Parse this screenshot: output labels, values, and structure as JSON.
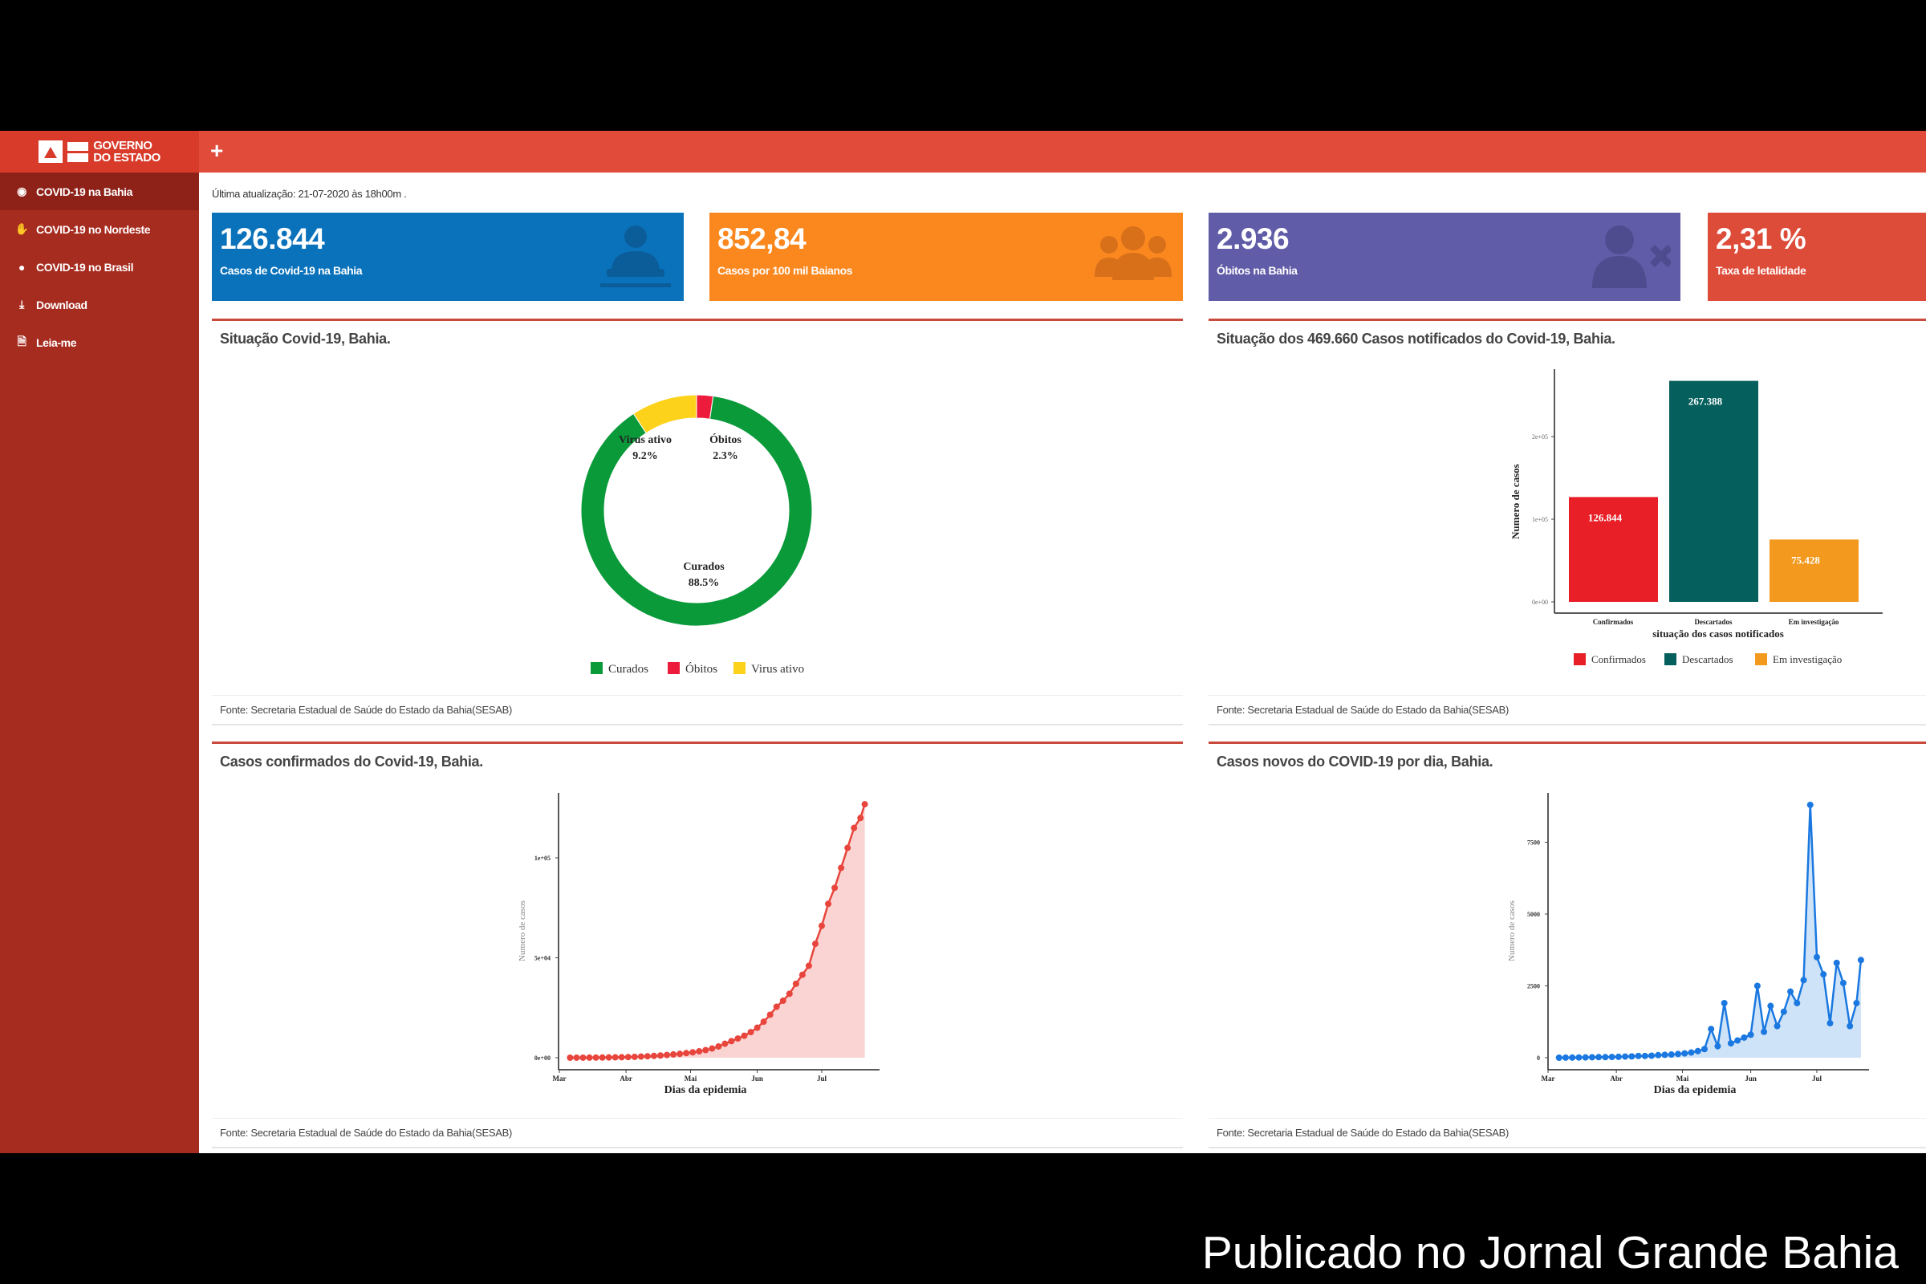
{
  "header": {
    "logo_text": "GOVERNO DO ESTADO",
    "logo_line1": "GOVERNO",
    "logo_line2": "DO ESTADO",
    "add_label": "+"
  },
  "sidebar": {
    "items": [
      {
        "label": "COVID-19 na Bahia",
        "icon": "binoculars-icon",
        "active": true
      },
      {
        "label": "COVID-19 no Nordeste",
        "icon": "hand-icon"
      },
      {
        "label": "COVID-19 no Brasil",
        "icon": "globe-icon"
      },
      {
        "label": "Download",
        "icon": "download-icon"
      },
      {
        "label": "Leia-me",
        "icon": "file-icon"
      }
    ]
  },
  "main": {
    "last_update": "Última atualização: 21-07-2020 às 18h00m .",
    "cards": [
      {
        "value": "126.844",
        "label": "Casos de Covid-19 na Bahia",
        "color": "#0a72bb",
        "icon": "doctor-icon"
      },
      {
        "value": "852,84",
        "label": "Casos por 100 mil Baianos",
        "color": "#fb881f",
        "icon": "users-icon"
      },
      {
        "value": "2.936",
        "label": "Óbitos na Bahia",
        "color": "#605ca8",
        "icon": "user-times-icon"
      },
      {
        "value": "2,31 %",
        "label": "Taxa de letalidade",
        "color": "#dd4b39",
        "icon": ""
      }
    ],
    "source": "Fonte: Secretaria Estadual de Saúde do Estado da Bahia(SESAB)"
  },
  "chart_data": [
    {
      "type": "pie",
      "title": "Situação Covid-19, Bahia.",
      "donut": true,
      "slices": [
        {
          "name": "Curados",
          "value": 88.5,
          "label": "88.5%",
          "color": "#0a9a3a"
        },
        {
          "name": "Óbitos",
          "value": 2.3,
          "label": "2.3%",
          "color": "#ee1c3c"
        },
        {
          "name": "Virus ativo",
          "value": 9.2,
          "label": "9.2%",
          "color": "#fcd21b"
        }
      ],
      "legend": "bottom"
    },
    {
      "type": "bar",
      "title": "Situação dos 469.660 Casos notificados do Covid-19, Bahia.",
      "categories": [
        "Confirmados",
        "Descartados",
        "Em investigação"
      ],
      "values": [
        126844,
        267388,
        75428
      ],
      "data_labels": [
        "126.844",
        "267.388",
        "75.428"
      ],
      "colors": [
        "#e81f27",
        "#05605d",
        "#f3991e"
      ],
      "xlabel": "situação dos casos notificados",
      "ylabel": "Numero de casos",
      "yticks": [
        {
          "v": 0,
          "label": "0e+00"
        },
        {
          "v": 100000,
          "label": "1e+05"
        },
        {
          "v": 200000,
          "label": "2e+05"
        }
      ],
      "ylim": [
        0,
        280000
      ],
      "legend": "bottom"
    },
    {
      "type": "area",
      "title": "Casos confirmados do Covid-19, Bahia.",
      "xlabel": "Dias da epidemia",
      "ylabel": "Numero de casos",
      "color": "#e8453c",
      "fill": "#f9d4d2",
      "xticks": [
        {
          "date": "2020-03-01",
          "label": "Mar"
        },
        {
          "date": "2020-04-01",
          "label": "Abr"
        },
        {
          "date": "2020-05-01",
          "label": "Mai"
        },
        {
          "date": "2020-06-01",
          "label": "Jun"
        },
        {
          "date": "2020-07-01",
          "label": "Jul"
        }
      ],
      "yticks": [
        {
          "v": 0,
          "label": "0e+00"
        },
        {
          "v": 50000,
          "label": "5e+04"
        },
        {
          "v": 100000,
          "label": "1e+05"
        }
      ],
      "x": [
        "2020-03-06",
        "2020-03-09",
        "2020-03-12",
        "2020-03-15",
        "2020-03-18",
        "2020-03-21",
        "2020-03-24",
        "2020-03-27",
        "2020-03-30",
        "2020-04-02",
        "2020-04-05",
        "2020-04-08",
        "2020-04-11",
        "2020-04-14",
        "2020-04-17",
        "2020-04-20",
        "2020-04-23",
        "2020-04-26",
        "2020-04-29",
        "2020-05-02",
        "2020-05-05",
        "2020-05-08",
        "2020-05-11",
        "2020-05-14",
        "2020-05-17",
        "2020-05-20",
        "2020-05-23",
        "2020-05-26",
        "2020-05-29",
        "2020-06-01",
        "2020-06-04",
        "2020-06-07",
        "2020-06-10",
        "2020-06-13",
        "2020-06-16",
        "2020-06-19",
        "2020-06-22",
        "2020-06-25",
        "2020-06-28",
        "2020-07-01",
        "2020-07-04",
        "2020-07-07",
        "2020-07-10",
        "2020-07-13",
        "2020-07-16",
        "2020-07-19",
        "2020-07-21"
      ],
      "y": [
        2,
        10,
        20,
        40,
        60,
        90,
        130,
        180,
        240,
        320,
        420,
        560,
        720,
        900,
        1100,
        1350,
        1650,
        1950,
        2300,
        2700,
        3200,
        3800,
        4600,
        5600,
        7000,
        8300,
        9600,
        11000,
        12800,
        15000,
        18000,
        21500,
        25500,
        28500,
        32000,
        37000,
        41500,
        46000,
        57000,
        66000,
        77000,
        85000,
        95000,
        105000,
        115000,
        120000,
        126844
      ]
    },
    {
      "type": "area",
      "title": "Casos novos do COVID-19 por dia, Bahia.",
      "xlabel": "Dias da epidemia",
      "ylabel": "Numero de casos",
      "color": "#1a78e0",
      "fill": "#cfe3f8",
      "xticks": [
        {
          "date": "2020-03-01",
          "label": "Mar"
        },
        {
          "date": "2020-04-01",
          "label": "Abr"
        },
        {
          "date": "2020-05-01",
          "label": "Mai"
        },
        {
          "date": "2020-06-01",
          "label": "Jun"
        },
        {
          "date": "2020-07-01",
          "label": "Jul"
        }
      ],
      "yticks": [
        {
          "v": 0,
          "label": "0"
        },
        {
          "v": 2500,
          "label": "2500"
        },
        {
          "v": 5000,
          "label": "5000"
        },
        {
          "v": 7500,
          "label": "7500"
        }
      ],
      "x": [
        "2020-03-06",
        "2020-03-09",
        "2020-03-12",
        "2020-03-15",
        "2020-03-18",
        "2020-03-21",
        "2020-03-24",
        "2020-03-27",
        "2020-03-30",
        "2020-04-02",
        "2020-04-05",
        "2020-04-08",
        "2020-04-11",
        "2020-04-14",
        "2020-04-17",
        "2020-04-20",
        "2020-04-23",
        "2020-04-26",
        "2020-04-29",
        "2020-05-02",
        "2020-05-05",
        "2020-05-08",
        "2020-05-11",
        "2020-05-14",
        "2020-05-17",
        "2020-05-20",
        "2020-05-23",
        "2020-05-26",
        "2020-05-29",
        "2020-06-01",
        "2020-06-04",
        "2020-06-07",
        "2020-06-10",
        "2020-06-13",
        "2020-06-16",
        "2020-06-19",
        "2020-06-22",
        "2020-06-25",
        "2020-06-28",
        "2020-07-01",
        "2020-07-04",
        "2020-07-07",
        "2020-07-10",
        "2020-07-13",
        "2020-07-16",
        "2020-07-19",
        "2020-07-21"
      ],
      "y": [
        0,
        2,
        5,
        8,
        10,
        15,
        20,
        20,
        25,
        30,
        40,
        45,
        60,
        60,
        70,
        90,
        100,
        110,
        130,
        150,
        180,
        230,
        300,
        1000,
        400,
        1900,
        500,
        600,
        700,
        800,
        2500,
        900,
        1800,
        1100,
        1600,
        2300,
        1900,
        2700,
        8800,
        3500,
        2900,
        1200,
        3300,
        2600,
        1100,
        1900,
        3400
      ]
    }
  ],
  "watermark": "Publicado no Jornal Grande Bahia"
}
